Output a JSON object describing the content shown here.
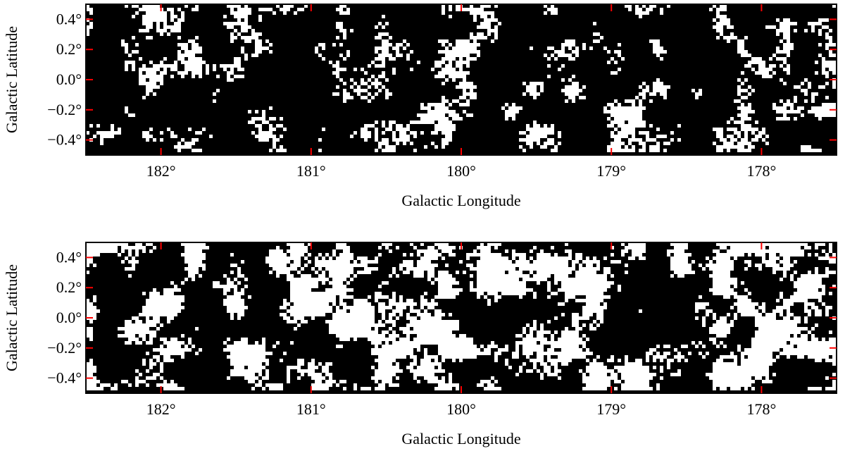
{
  "chart_data": [
    {
      "type": "image",
      "xlabel": "Galactic Longitude",
      "ylabel": "Galactic Latitude",
      "xlim": [
        182.5,
        177.5
      ],
      "ylim": [
        -0.5,
        0.5
      ],
      "xticks": [
        {
          "value": 182,
          "label": "182°"
        },
        {
          "value": 181,
          "label": "181°"
        },
        {
          "value": 180,
          "label": "180°"
        },
        {
          "value": 179,
          "label": "179°"
        },
        {
          "value": 178,
          "label": "178°"
        }
      ],
      "yticks": [
        {
          "value": 0.4,
          "label": "0.4°"
        },
        {
          "value": 0.2,
          "label": "0.2°"
        },
        {
          "value": 0.0,
          "label": "0.0°"
        },
        {
          "value": -0.2,
          "label": "−0.2°"
        },
        {
          "value": -0.4,
          "label": "−0.4°"
        }
      ],
      "tick_color": "#ff0000"
    },
    {
      "type": "image",
      "xlabel": "Galactic Longitude",
      "ylabel": "Galactic Latitude",
      "xlim": [
        182.5,
        177.5
      ],
      "ylim": [
        -0.5,
        0.5
      ],
      "xticks": [
        {
          "value": 182,
          "label": "182°"
        },
        {
          "value": 181,
          "label": "181°"
        },
        {
          "value": 180,
          "label": "180°"
        },
        {
          "value": 179,
          "label": "179°"
        },
        {
          "value": 178,
          "label": "178°"
        }
      ],
      "yticks": [
        {
          "value": 0.4,
          "label": "0.4°"
        },
        {
          "value": 0.2,
          "label": "0.2°"
        },
        {
          "value": 0.0,
          "label": "0.0°"
        },
        {
          "value": -0.2,
          "label": "−0.2°"
        },
        {
          "value": -0.4,
          "label": "−0.4°"
        }
      ],
      "tick_color": "#ff0000"
    }
  ]
}
